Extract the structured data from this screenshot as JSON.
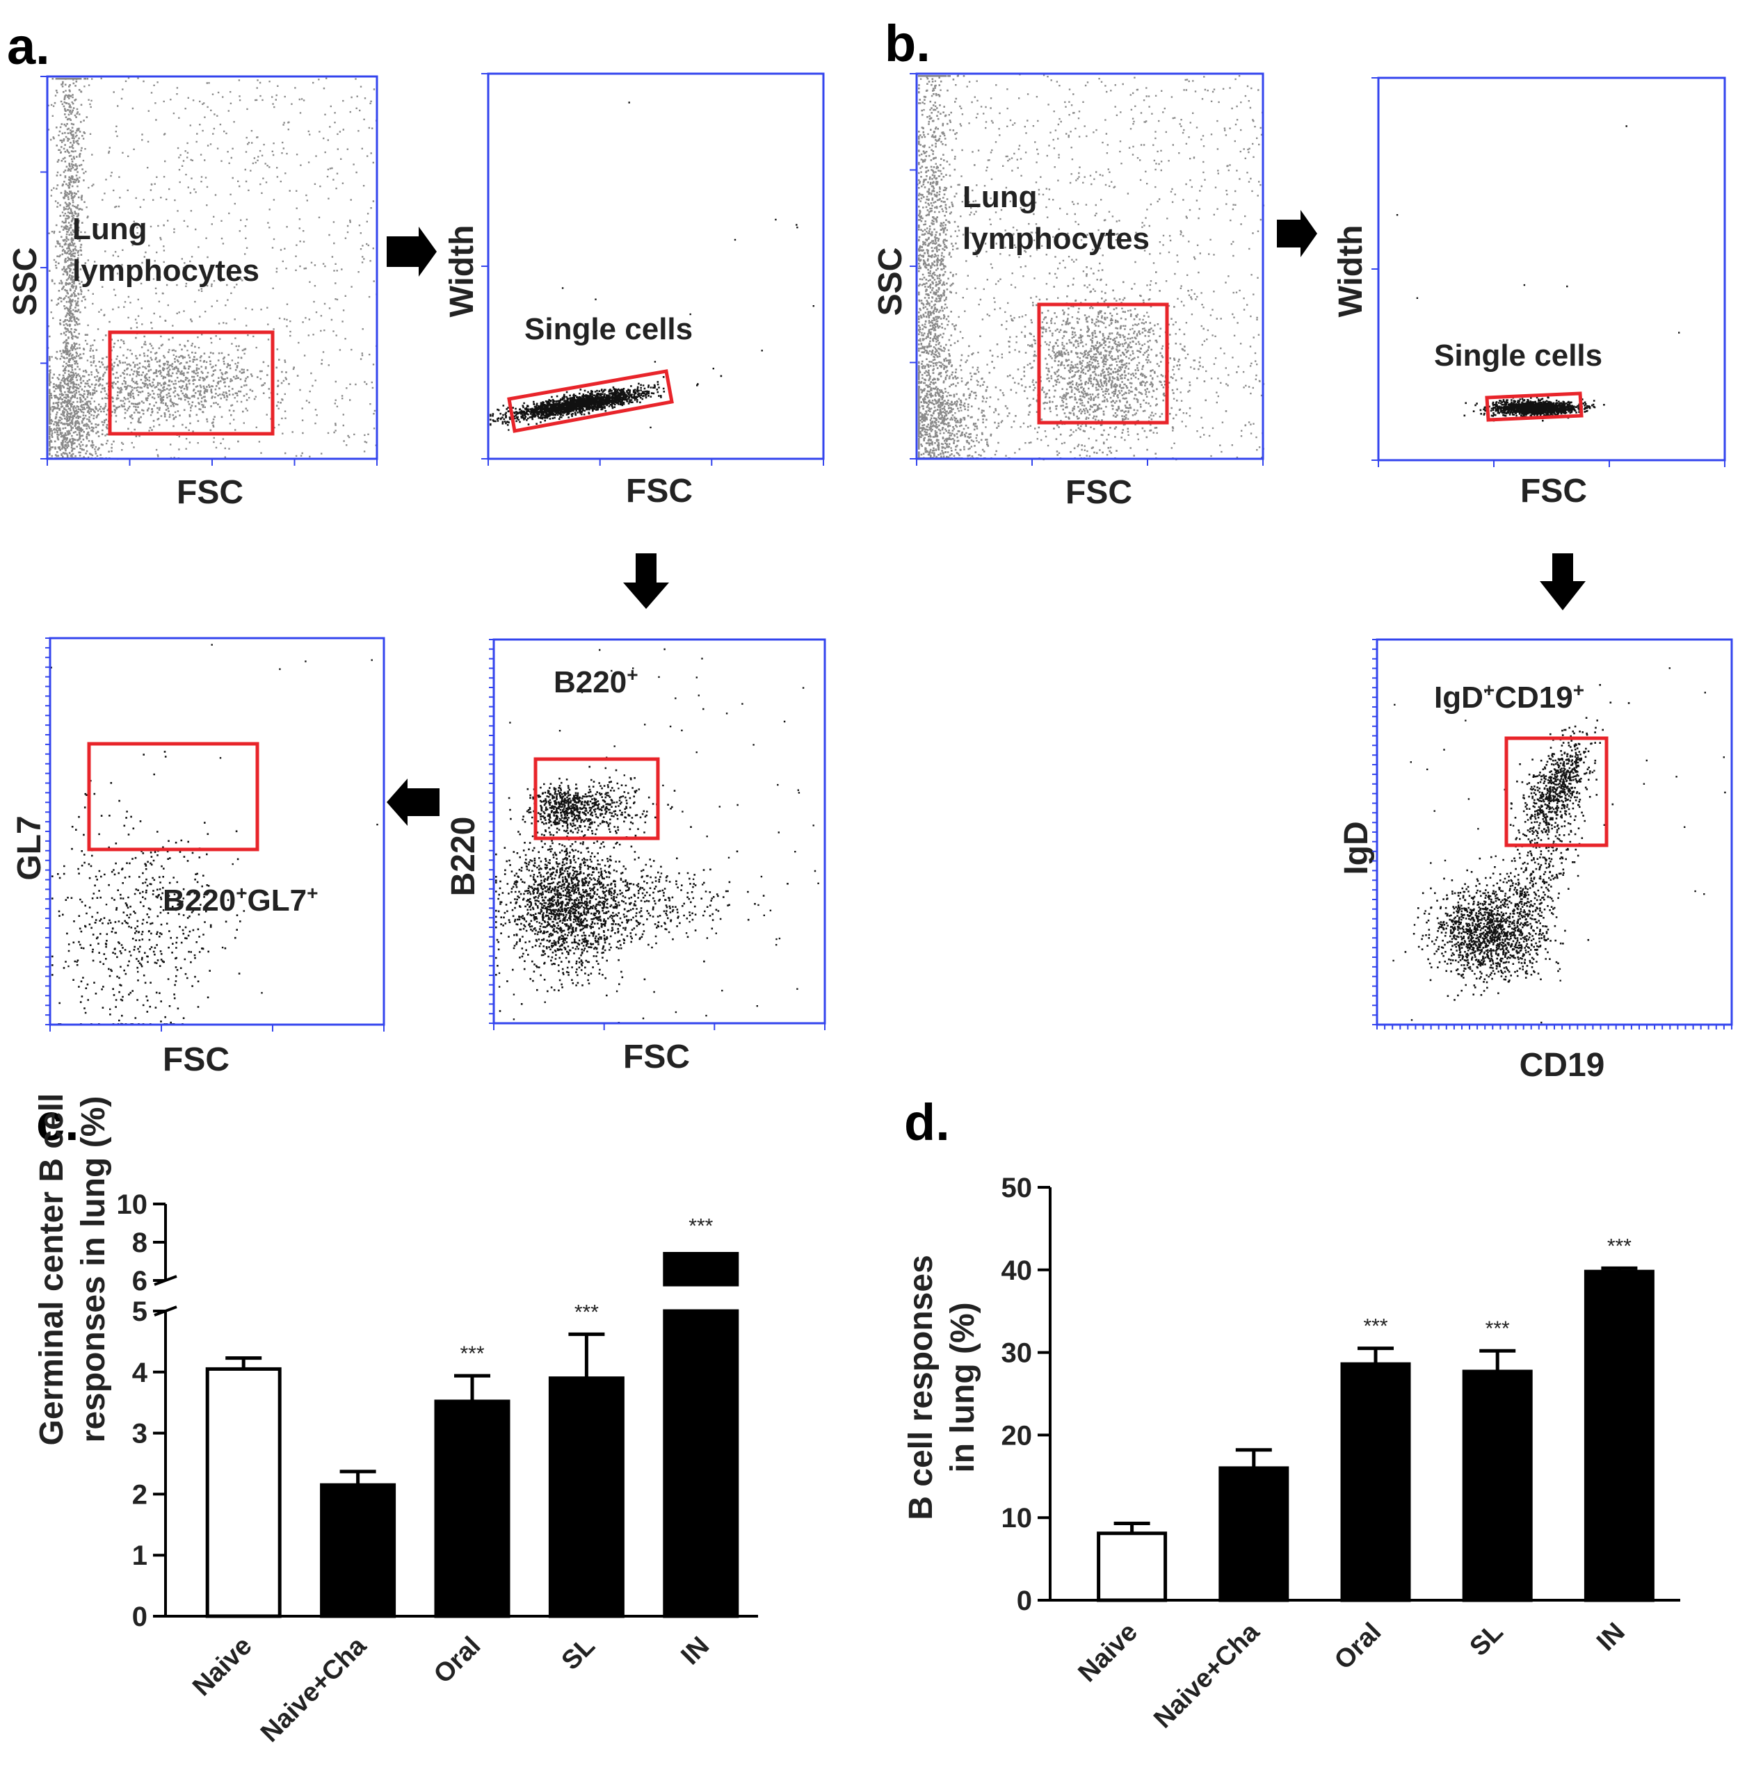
{
  "panels": [
    "a.",
    "b.",
    "c.",
    "d."
  ],
  "flow": {
    "a": {
      "p1": {
        "x": "FSC",
        "y": "SSC",
        "gate": [
          "Lung",
          "lymphocytes"
        ]
      },
      "p2": {
        "x": "FSC",
        "y": "Width",
        "gate": "Single cells"
      },
      "p3": {
        "x": "FSC",
        "y": "B220",
        "gate": "B220",
        "sup": "+"
      },
      "p4": {
        "x": "FSC",
        "y": "GL7",
        "gate": [
          "B220",
          "+",
          "GL7",
          "+"
        ]
      }
    },
    "b": {
      "p1": {
        "x": "FSC",
        "y": "SSC",
        "gate": [
          "Lung",
          "lymphocytes"
        ]
      },
      "p2": {
        "x": "FSC",
        "y": "Width",
        "gate": "Single cells"
      },
      "p3": {
        "x": "CD19",
        "y": "IgD",
        "gate": [
          "IgD",
          "+",
          "CD19",
          "+"
        ]
      }
    }
  },
  "colors": {
    "axis": "#3344ee",
    "gate": "#e8242a",
    "bar": "#000000",
    "dots_light": "#8a8a8a",
    "dots_dark": "#111111",
    "arrow": "#000000"
  },
  "chart_data": [
    {
      "type": "bar",
      "panel": "c.",
      "ylabel": [
        "Germinal center B cell",
        "responses in lung (%)"
      ],
      "categories": [
        "Naive",
        "Naive+Cha",
        "Oral",
        "SL",
        "IN"
      ],
      "values": [
        4.05,
        2.15,
        3.52,
        3.9,
        7.4
      ],
      "errors": [
        0.18,
        0.22,
        0.42,
        0.72,
        0.1
      ],
      "fills": [
        "#ffffff",
        "#000000",
        "#000000",
        "#000000",
        "#000000"
      ],
      "significance": [
        "",
        "",
        "***",
        "***",
        "***"
      ],
      "broken_axis": {
        "lower": [
          0,
          5
        ],
        "upper": [
          6,
          10
        ]
      },
      "yticks_lower": [
        0,
        1,
        2,
        3,
        4,
        5
      ],
      "yticks_upper": [
        6,
        8,
        10
      ]
    },
    {
      "type": "bar",
      "panel": "d.",
      "ylabel": [
        "B cell responses",
        "in lung (%)"
      ],
      "categories": [
        "Naive",
        "Naive+Cha",
        "Oral",
        "SL",
        "IN"
      ],
      "values": [
        8.1,
        16.0,
        28.6,
        27.7,
        39.8
      ],
      "errors": [
        1.2,
        2.2,
        1.9,
        2.5,
        0.4
      ],
      "fills": [
        "#ffffff",
        "#000000",
        "#000000",
        "#000000",
        "#000000"
      ],
      "significance": [
        "",
        "",
        "***",
        "***",
        "***"
      ],
      "ylim": [
        0,
        50
      ],
      "yticks": [
        0,
        10,
        20,
        30,
        40,
        50
      ]
    }
  ]
}
